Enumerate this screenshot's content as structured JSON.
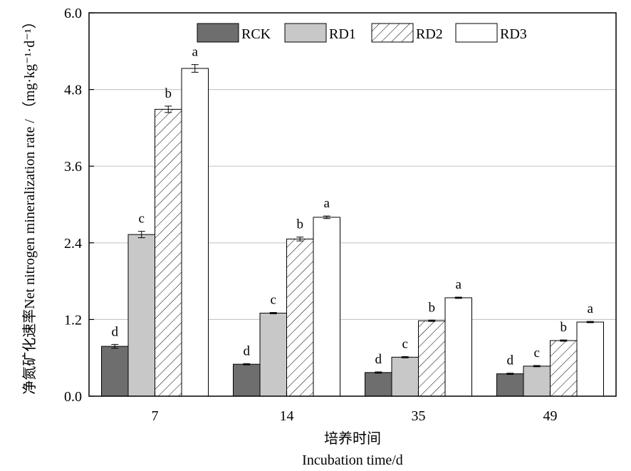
{
  "chart_data": {
    "type": "bar",
    "categories": [
      "7",
      "14",
      "35",
      "49"
    ],
    "series": [
      {
        "name": "RCK",
        "values": [
          0.78,
          0.5,
          0.37,
          0.35
        ],
        "errors": [
          0.03,
          0.01,
          0.01,
          0.01
        ],
        "labels": [
          "d",
          "d",
          "d",
          "d"
        ],
        "color": "#6e6e6e",
        "pattern": "solid"
      },
      {
        "name": "RD1",
        "values": [
          2.53,
          1.3,
          0.61,
          0.47
        ],
        "errors": [
          0.05,
          0.01,
          0.01,
          0.01
        ],
        "labels": [
          "c",
          "c",
          "c",
          "c"
        ],
        "color": "#c8c8c8",
        "pattern": "solid"
      },
      {
        "name": "RD2",
        "values": [
          4.49,
          2.46,
          1.18,
          0.87
        ],
        "errors": [
          0.05,
          0.03,
          0.01,
          0.01
        ],
        "labels": [
          "b",
          "b",
          "b",
          "b"
        ],
        "color": "#ffffff",
        "pattern": "hatch"
      },
      {
        "name": "RD3",
        "values": [
          5.13,
          2.8,
          1.54,
          1.16
        ],
        "errors": [
          0.06,
          0.02,
          0.01,
          0.01
        ],
        "labels": [
          "a",
          "a",
          "a",
          "a"
        ],
        "color": "#ffffff",
        "pattern": "solid"
      }
    ],
    "yticks": [
      "0.0",
      "1.2",
      "2.4",
      "3.6",
      "4.8",
      "6.0"
    ],
    "ylim": [
      0,
      6.0
    ],
    "xlabel_cn": "培养时间",
    "xlabel_en": "Incubation time/d",
    "ylabel_cn": "净氮矿化速率",
    "ylabel_en": "Net nitrogen mineralization rate / ",
    "ylabel_unit": "（mg·kg⁻¹·d⁻¹）",
    "grid": true,
    "legend_position": "top"
  }
}
